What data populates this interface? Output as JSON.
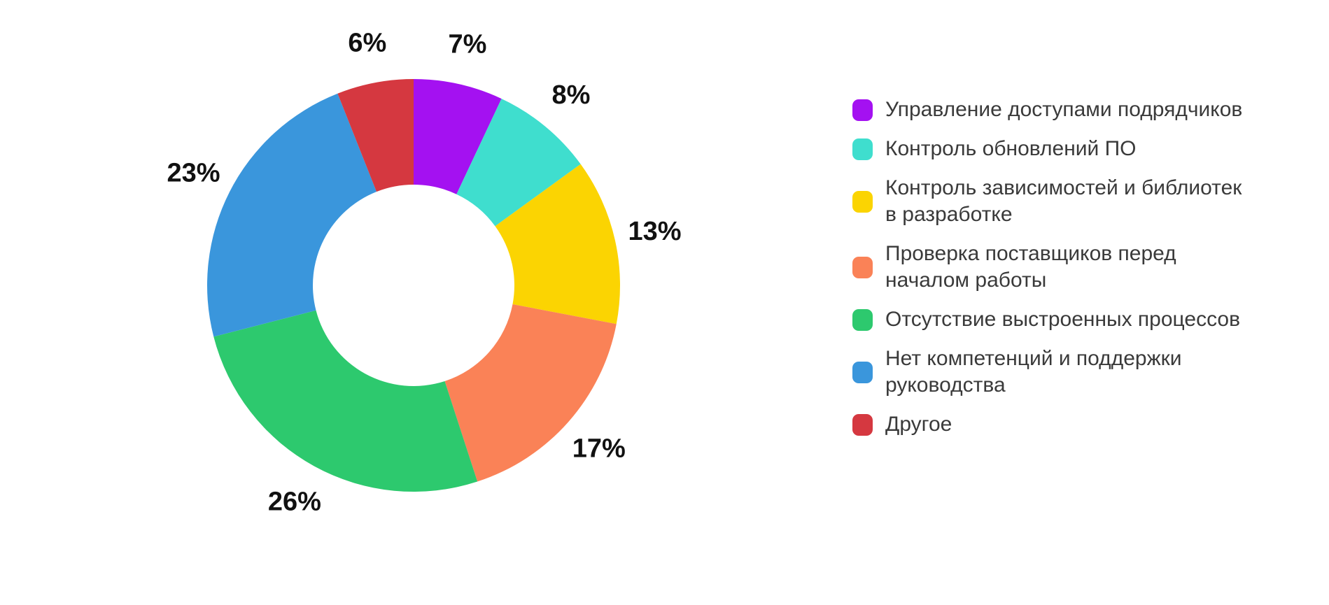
{
  "chart_data": {
    "type": "pie",
    "subtype": "donut",
    "title": "",
    "legend_position": "right",
    "start_angle_deg": 0,
    "direction": "clockwise",
    "inner_radius_ratio": 0.49,
    "value_suffix": "%",
    "series": [
      {
        "label": "Управление доступами подрядчиков",
        "value": 7,
        "value_label": "7%",
        "color": "#A411F1"
      },
      {
        "label": "Контроль обновлений ПО",
        "value": 8,
        "value_label": "8%",
        "color": "#3FDECE"
      },
      {
        "label": "Контроль зависимостей и библиотек\nв разработке",
        "value": 13,
        "value_label": "13%",
        "color": "#FBD402"
      },
      {
        "label": "Проверка поставщиков перед\nначалом работы",
        "value": 17,
        "value_label": "17%",
        "color": "#FA8257"
      },
      {
        "label": "Отсутствие выстроенных процессов",
        "value": 26,
        "value_label": "26%",
        "color": "#2DC96E"
      },
      {
        "label": "Нет компетенций и поддержки\nруководства",
        "value": 23,
        "value_label": "23%",
        "color": "#3A96DC"
      },
      {
        "label": "Другое",
        "value": 6,
        "value_label": "6%",
        "color": "#D53840"
      }
    ]
  }
}
